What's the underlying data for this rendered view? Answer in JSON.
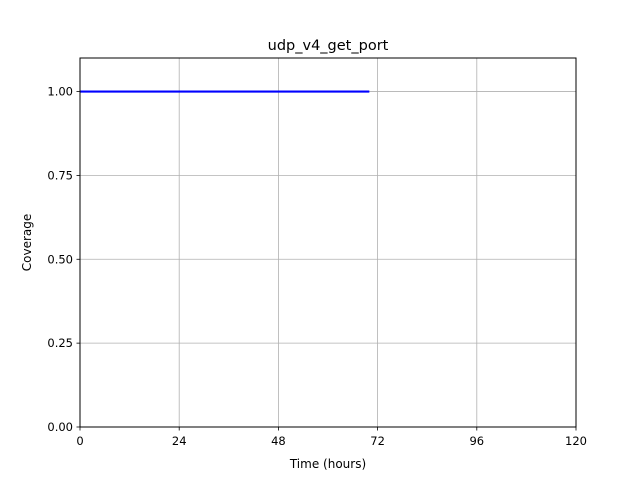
{
  "chart_data": {
    "type": "line",
    "title": "udp_v4_get_port",
    "xlabel": "Time (hours)",
    "ylabel": "Coverage",
    "xlim": [
      0,
      120
    ],
    "ylim": [
      0,
      1.1
    ],
    "x_ticks": [
      0,
      24,
      48,
      72,
      96,
      120
    ],
    "x_tick_labels": [
      "0",
      "24",
      "48",
      "72",
      "96",
      "120"
    ],
    "y_ticks": [
      0,
      0.25,
      0.5,
      0.75,
      1.0
    ],
    "y_tick_labels": [
      "0.00",
      "0.25",
      "0.50",
      "0.75",
      "1.00"
    ],
    "grid": true,
    "series": [
      {
        "color": "#0000ff",
        "x": [
          0,
          70
        ],
        "y": [
          1.0,
          1.0
        ]
      }
    ]
  }
}
